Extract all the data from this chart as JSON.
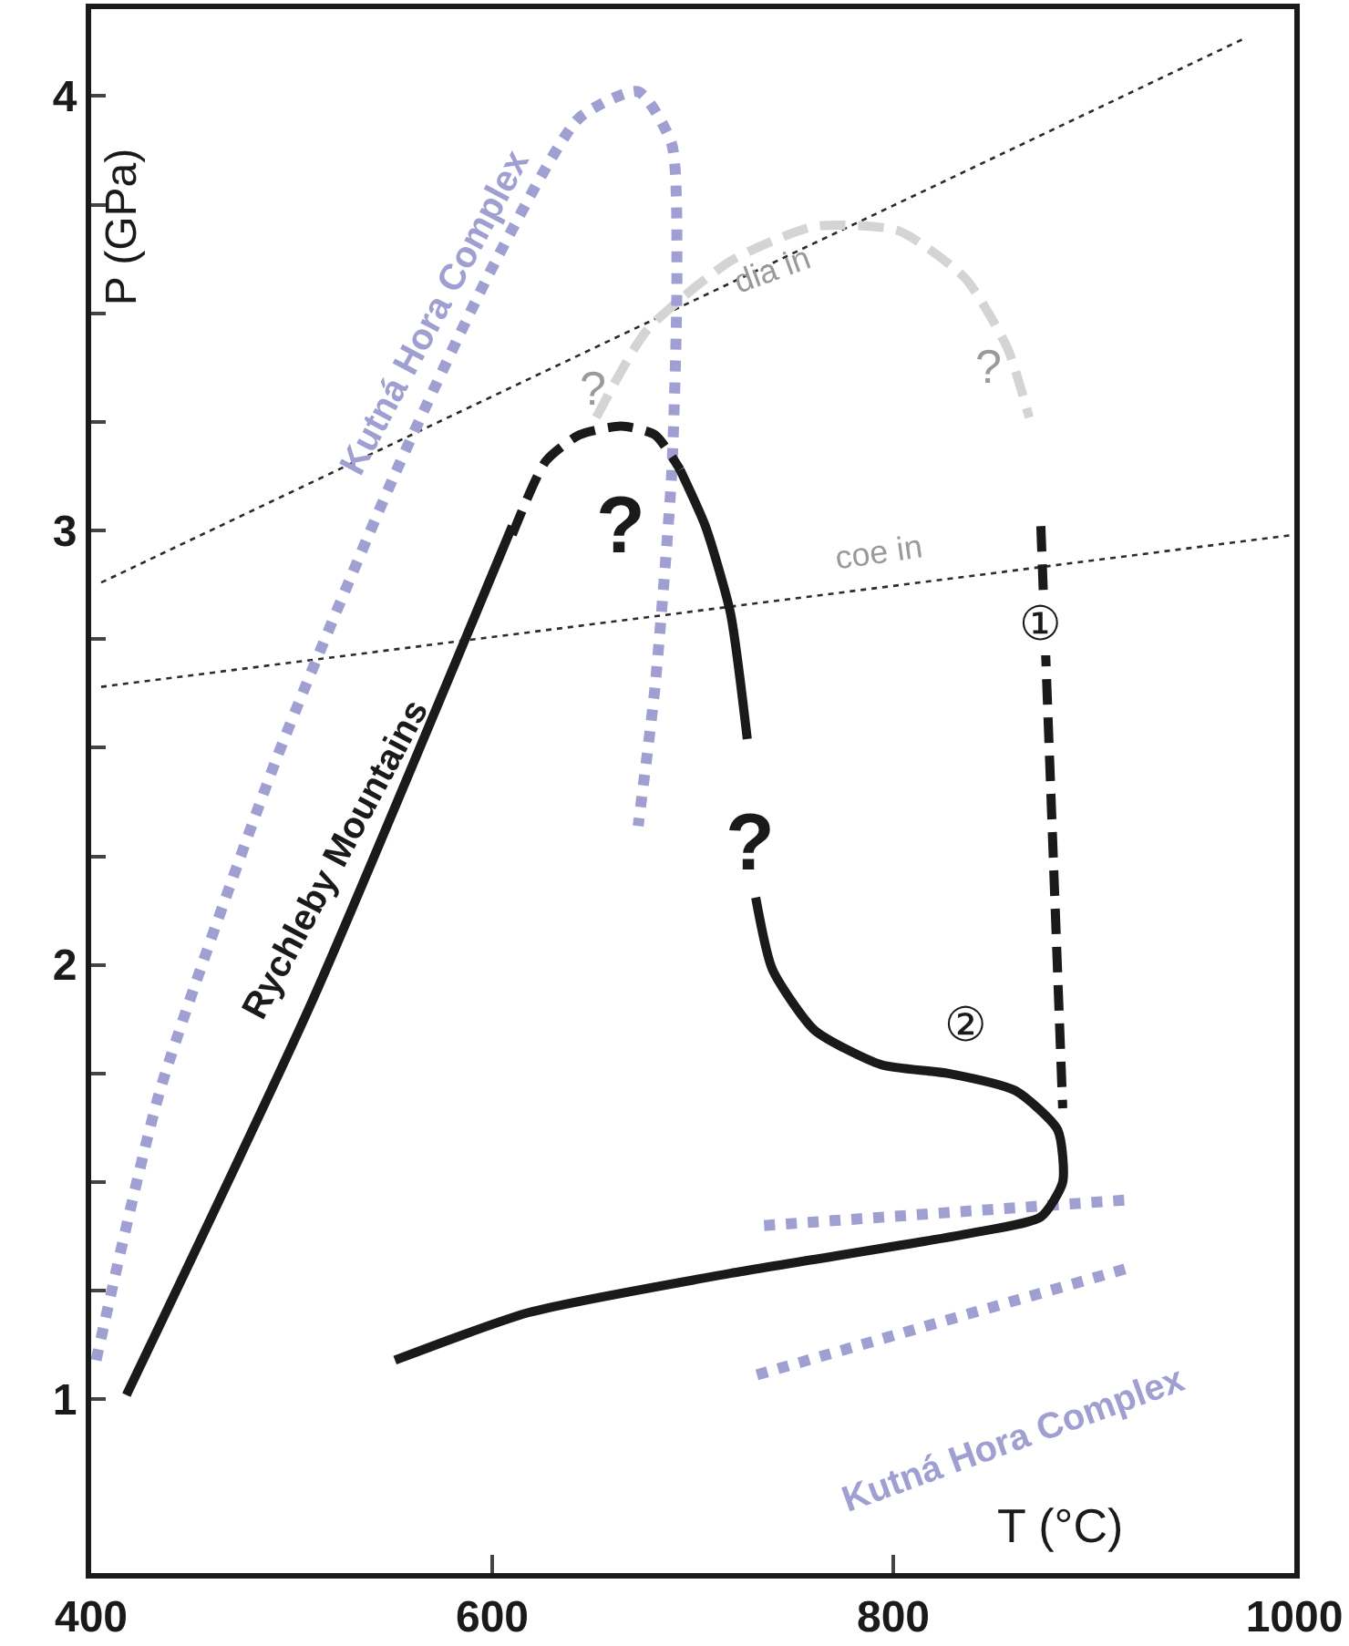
{
  "chart_data": {
    "type": "line",
    "xlabel": "T (°C)",
    "ylabel": "P (GPa)",
    "xlim": [
      400,
      1000
    ],
    "xticks": [
      400,
      600,
      800,
      1000
    ],
    "ylim": [
      0.6,
      4.2
    ],
    "yticks": [
      1,
      {
        "value": 1.25,
        "label": null
      },
      {
        "value": 1.5,
        "label": null
      },
      {
        "value": 1.75,
        "label": null
      },
      2,
      {
        "value": 2.25,
        "label": null
      },
      {
        "value": 2.5,
        "label": null
      },
      {
        "value": 2.75,
        "label": null
      },
      3,
      {
        "value": 3.25,
        "label": null
      },
      {
        "value": 3.5,
        "label": null
      },
      {
        "value": 3.75,
        "label": null
      },
      4
    ],
    "marker": "none",
    "series": [
      {
        "color": "#2b2b2b",
        "line_style": "dotted",
        "x": [
          405,
          974
        ],
        "values": [
          2.88,
          4.13
        ]
      },
      {
        "color": "#2b2b2b",
        "line_style": "dotted",
        "x": [
          405,
          1000
        ],
        "values": [
          2.64,
          2.99
        ]
      },
      {
        "color": "#d4d4d4",
        "line_style": "dashed",
        "x": [
          651.9,
          677.0,
          718.8,
          760.7,
          802.5,
          836.0,
          856.9,
          867.8
        ],
        "values": [
          3.26,
          3.46,
          3.62,
          3.7,
          3.69,
          3.58,
          3.42,
          3.26
        ]
      },
      {
        "color": "#9f9fd2",
        "line_style": "dotted",
        "x": [
          402.5,
          434.3,
          492.9,
          551.5,
          601.7,
          643.5,
          672.8,
          689.5,
          692.1,
          689.5,
          681.2,
          672.8
        ],
        "values": [
          1.09,
          1.71,
          2.48,
          3.13,
          3.62,
          3.95,
          4.01,
          3.89,
          3.58,
          3.13,
          2.64,
          2.32
        ]
      },
      {
        "color": "#9f9fd2",
        "line_style": "dotted",
        "x": [
          735.6,
          919.7
        ],
        "values": [
          1.4,
          1.46
        ]
      },
      {
        "color": "#9f9fd2",
        "line_style": "dotted",
        "x": [
          915.5,
          727.2
        ],
        "values": [
          1.3,
          1.05
        ]
      },
      {
        "color": "#1a1a1a",
        "line_style": "solid",
        "x": [
          417.6,
          509.6,
          610
        ],
        "values": [
          1.01,
          1.91,
          3.01
        ]
      },
      {
        "color": "#1a1a1a",
        "line_style": "dashed",
        "x": [
          610,
          626.8,
          643.5,
          664.4,
          681.2,
          693.7
        ],
        "values": [
          2.99,
          3.16,
          3.22,
          3.24,
          3.22,
          3.14
        ]
      },
      {
        "color": "#1a1a1a",
        "line_style": "solid",
        "x": [
          693.7,
          706.3,
          718.8,
          727.2
        ],
        "values": [
          3.14,
          3.01,
          2.81,
          2.52
        ]
      },
      {
        "color": "#1a1a1a",
        "line_style": "solid",
        "x": [
          731.4,
          739.7,
          760.7,
          794.1,
          827.6,
          861.1,
          882.0,
          884.5,
          873.6,
          836.0,
          718.8,
          618.4,
          551.5
        ],
        "values": [
          2.155,
          1.99,
          1.85,
          1.77,
          1.75,
          1.71,
          1.62,
          1.5,
          1.42,
          1.38,
          1.29,
          1.2,
          1.09
        ]
      },
      {
        "color": "#1a1a1a",
        "line_style": "dashed",
        "x": [
          873.6,
          884.5
        ],
        "values": [
          3.01,
          1.67
        ]
      }
    ],
    "annotations": [
      "Kutná Hora Complex",
      "Rychleby Mountains",
      "Kutná Hora Complex",
      {
        "text": "dia in",
        "x": 739.7,
        "y": 3.6
      },
      "coe in",
      "?",
      "?",
      "?",
      "?",
      {
        "text": "①",
        "x": 873.6,
        "y": 2.78
      },
      {
        "text": "②",
        "x": 836,
        "y": 1.86
      }
    ]
  }
}
